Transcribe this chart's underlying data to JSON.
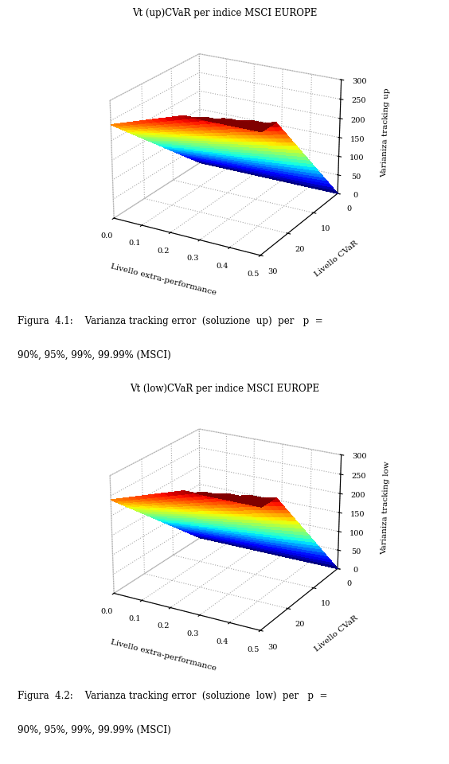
{
  "title_up": "Vt (up)CVaR per indice MSCI EUROPE",
  "title_low": "Vt (low)CVaR per indice MSCI EUROPE",
  "xlabel": "Livello extra-performance",
  "ylabel": "Livello CVaR",
  "zlabel_up": "Varianiza tracking up",
  "zlabel_low": "Varianiza tracking low",
  "x_ticks": [
    0.0,
    0.1,
    0.2,
    0.3,
    0.4,
    0.5
  ],
  "y_ticks": [
    0,
    10,
    20,
    30
  ],
  "z_ticks": [
    0,
    50,
    100,
    150,
    200,
    250,
    300
  ],
  "fig_width": 5.64,
  "fig_height": 9.6,
  "background_color": "#ffffff",
  "elev": 22,
  "azim": -60,
  "nx": 25,
  "ny": 25
}
